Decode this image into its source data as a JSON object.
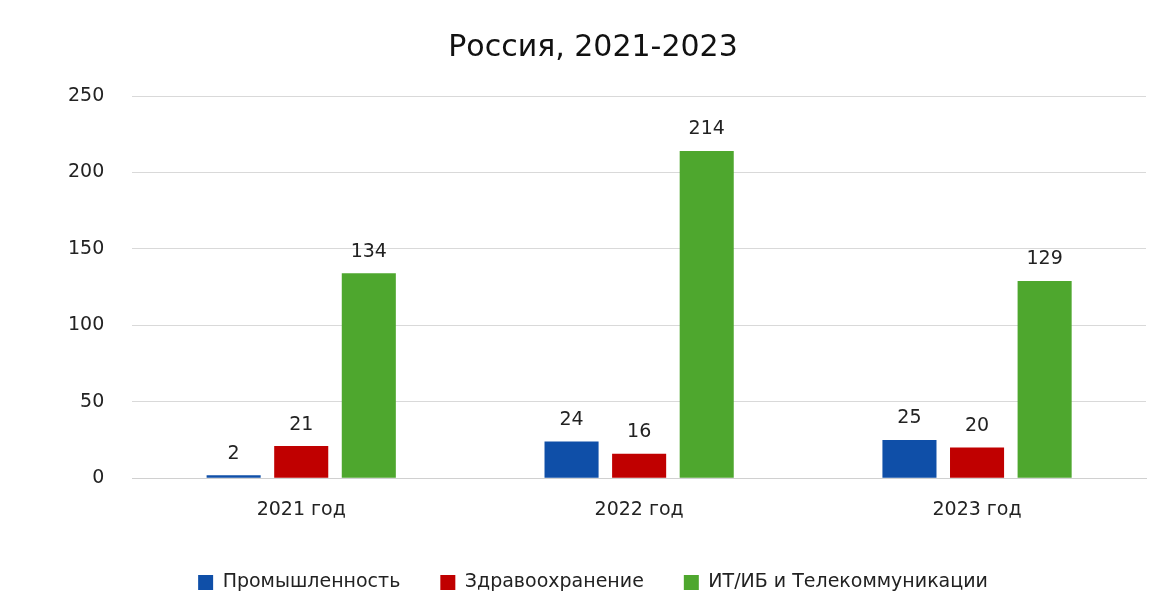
{
  "chart_data": {
    "type": "bar",
    "title": "Россия, 2021-2023",
    "categories": [
      "2021 год",
      "2022 год",
      "2023 год"
    ],
    "series": [
      {
        "name": "Промышленность",
        "color": "#0f4fa8",
        "values": [
          2,
          24,
          25
        ]
      },
      {
        "name": "Здравоохранение",
        "color": "#c00000",
        "values": [
          21,
          16,
          20
        ]
      },
      {
        "name": "ИТ/ИБ и Телекоммуникации",
        "color": "#4ea72e",
        "values": [
          134,
          214,
          129
        ]
      }
    ],
    "ylim": [
      0,
      250
    ],
    "yticks": [
      0,
      50,
      100,
      150,
      200,
      250
    ],
    "grid": "y",
    "legend": "bottom",
    "data_labels": true
  }
}
